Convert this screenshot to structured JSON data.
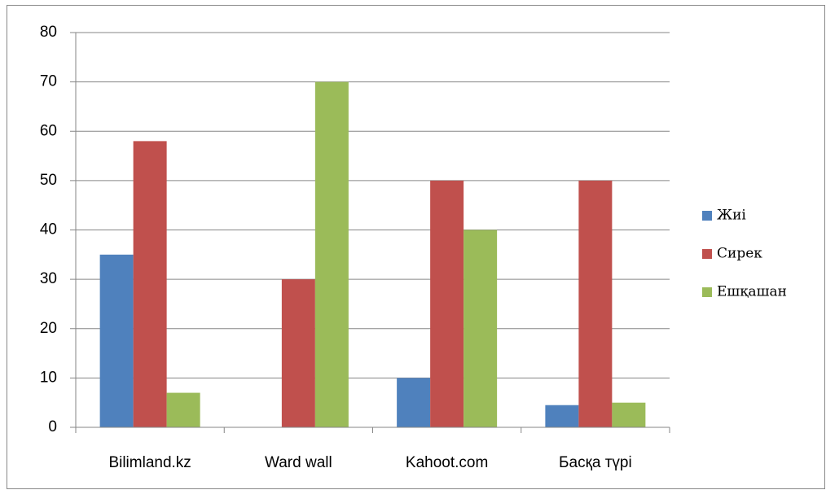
{
  "chart_data": {
    "type": "bar",
    "categories": [
      "Bilimland.kz",
      "Ward wall",
      "Kahoot.com",
      "Басқа түрі"
    ],
    "series": [
      {
        "name": "Жиі",
        "color": "#4f81bd",
        "values": [
          35,
          0,
          10,
          4.5
        ]
      },
      {
        "name": "Сирек",
        "color": "#c0504d",
        "values": [
          58,
          30,
          50,
          50
        ]
      },
      {
        "name": "Ешқашан",
        "color": "#9bbb59",
        "values": [
          7,
          70,
          40,
          5
        ]
      }
    ],
    "ylim": [
      0,
      80
    ],
    "yticks": [
      0,
      10,
      20,
      30,
      40,
      50,
      60,
      70,
      80
    ],
    "grid": true,
    "legend": "right"
  }
}
